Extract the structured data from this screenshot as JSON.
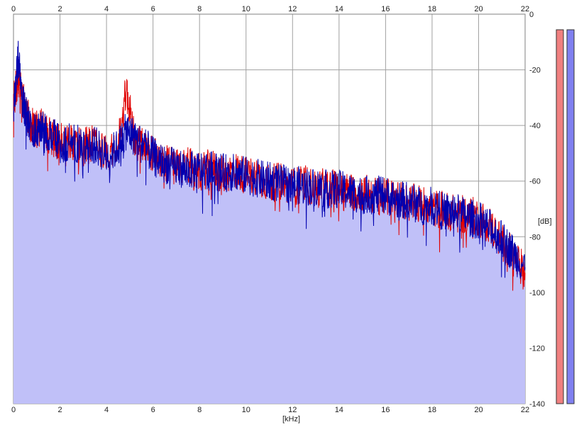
{
  "chart_data": {
    "type": "area",
    "xlabel": "[kHz]",
    "ylabel": "[dB]",
    "xlim": [
      0,
      22
    ],
    "ylim": [
      -140,
      0
    ],
    "x_ticks": [
      "0",
      "2",
      "4",
      "6",
      "8",
      "10",
      "12",
      "14",
      "16",
      "18",
      "20",
      "22"
    ],
    "y_ticks": [
      "0",
      "-20",
      "-40",
      "-60",
      "-80",
      "-100",
      "-120",
      "-140"
    ],
    "grid": true,
    "colors": {
      "left": "#e00000",
      "right": "#0000b0",
      "fill": "#c0c0f8",
      "meter_left": "#f08080",
      "meter_right": "#8080f0"
    },
    "series": [
      {
        "channel": "left",
        "x": [
          0,
          0.2,
          0.4,
          0.6,
          0.9,
          1.2,
          1.6,
          2,
          2.5,
          3,
          3.5,
          4,
          4.5,
          4.85,
          5.2,
          5.6,
          6,
          6.5,
          7,
          7.5,
          8,
          8.5,
          9,
          9.5,
          10,
          10.5,
          11,
          11.5,
          12,
          12.5,
          13,
          13.5,
          14,
          14.5,
          15,
          15.5,
          16,
          16.5,
          17,
          17.5,
          18,
          18.5,
          19,
          19.5,
          20,
          20.5,
          21,
          21.5,
          22
        ],
        "y": [
          -32,
          -22,
          -30,
          -37,
          -42,
          -40,
          -44,
          -46,
          -45,
          -48,
          -46,
          -50,
          -47,
          -27,
          -45,
          -48,
          -50,
          -53,
          -55,
          -54,
          -57,
          -55,
          -58,
          -56,
          -58,
          -58,
          -61,
          -60,
          -62,
          -61,
          -63,
          -62,
          -63,
          -64,
          -64,
          -65,
          -66,
          -66,
          -68,
          -68,
          -70,
          -70,
          -72,
          -72,
          -73,
          -76,
          -82,
          -87,
          -93
        ]
      },
      {
        "channel": "right",
        "x": [
          0,
          0.2,
          0.4,
          0.6,
          0.9,
          1.2,
          1.6,
          2,
          2.5,
          3,
          3.5,
          4,
          4.5,
          4.85,
          5.2,
          5.6,
          6,
          6.5,
          7,
          7.5,
          8,
          8.5,
          9,
          9.5,
          10,
          10.5,
          11,
          11.5,
          12,
          12.5,
          13,
          13.5,
          14,
          14.5,
          15,
          15.5,
          16,
          16.5,
          17,
          17.5,
          18,
          18.5,
          19,
          19.5,
          20,
          20.5,
          21,
          21.5,
          22
        ],
        "y": [
          -35,
          -16,
          -32,
          -38,
          -43,
          -41,
          -43,
          -47,
          -46,
          -47,
          -47,
          -51,
          -48,
          -42,
          -44,
          -47,
          -51,
          -54,
          -55,
          -56,
          -56,
          -56,
          -57,
          -57,
          -58,
          -59,
          -60,
          -61,
          -61,
          -62,
          -62,
          -63,
          -63,
          -64,
          -65,
          -65,
          -65,
          -67,
          -67,
          -69,
          -69,
          -71,
          -71,
          -73,
          -74,
          -77,
          -81,
          -86,
          -91
        ]
      }
    ]
  }
}
